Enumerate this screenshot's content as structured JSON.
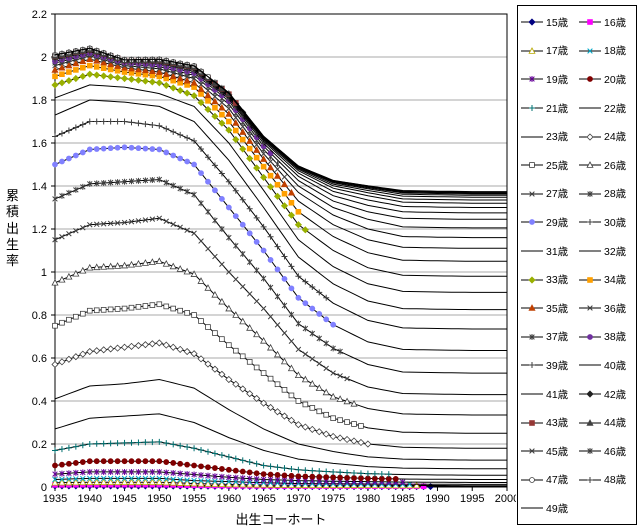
{
  "chart_data": {
    "type": "line",
    "title": "",
    "x_title": "出生コーホート",
    "y_title": "累積出生率",
    "x_range": [
      1935,
      2000
    ],
    "y_range": [
      0,
      2.2
    ],
    "x_tick_values": [
      1935,
      1940,
      1945,
      1950,
      1955,
      1960,
      1965,
      1970,
      1975,
      1980,
      1985,
      1990,
      1995,
      2000
    ],
    "x_tick_labels": [
      "1935",
      "1940",
      "1945",
      "1950",
      "1955",
      "1960",
      "1965",
      "1970",
      "1975",
      "1980",
      "1985",
      "1990",
      "1995",
      "2000"
    ],
    "y_tick_values": [
      0,
      0.2,
      0.4,
      0.6,
      0.8,
      1.0,
      1.2,
      1.4,
      1.6,
      1.8,
      2.0,
      2.2
    ],
    "y_tick_labels": [
      "0",
      "0.2",
      "0.4",
      "0.6",
      "0.8",
      "1",
      "1.2",
      "1.4",
      "1.6",
      "1.8",
      "2",
      "2.2"
    ],
    "grid": "horizontal",
    "legend_position": "right",
    "cohorts": [
      1935,
      1940,
      1945,
      1950,
      1955,
      1960,
      1965,
      1970,
      1975,
      1980,
      1985,
      1990,
      1995,
      2000
    ],
    "series": [
      {
        "label": "15歳",
        "age": 15,
        "marker": "diamond",
        "filled": true,
        "color": "#000080",
        "marker_end": 1989,
        "values": [
          0.005,
          0.005,
          0.005,
          0.005,
          0.004,
          0.003,
          0.002,
          0.002,
          0.002,
          0.002,
          0.002,
          0.002,
          0.001,
          0.001
        ]
      },
      {
        "label": "16歳",
        "age": 16,
        "marker": "square",
        "filled": true,
        "color": "#FF00FF",
        "marker_end": 1988,
        "values": [
          0.01,
          0.011,
          0.011,
          0.011,
          0.008,
          0.006,
          0.005,
          0.004,
          0.004,
          0.004,
          0.004,
          0.003,
          0.003,
          0.003
        ]
      },
      {
        "label": "17歳",
        "age": 17,
        "marker": "triangle",
        "filled": false,
        "color": "#B8A800",
        "marker_end": 1987,
        "values": [
          0.02,
          0.022,
          0.022,
          0.022,
          0.016,
          0.012,
          0.01,
          0.008,
          0.008,
          0.008,
          0.007,
          0.007,
          0.006,
          0.006
        ]
      },
      {
        "label": "18歳",
        "age": 18,
        "marker": "x",
        "filled": false,
        "color": "#00A8C8",
        "marker_end": 1986,
        "values": [
          0.035,
          0.04,
          0.04,
          0.04,
          0.03,
          0.025,
          0.02,
          0.016,
          0.015,
          0.014,
          0.013,
          0.013,
          0.012,
          0.012
        ]
      },
      {
        "label": "19歳",
        "age": 19,
        "marker": "star",
        "filled": false,
        "color": "#660099",
        "marker_end": 1985,
        "values": [
          0.06,
          0.07,
          0.07,
          0.07,
          0.058,
          0.045,
          0.035,
          0.03,
          0.027,
          0.025,
          0.023,
          0.022,
          0.021,
          0.021
        ]
      },
      {
        "label": "20歳",
        "age": 20,
        "marker": "circle",
        "filled": true,
        "color": "#800000",
        "marker_end": 1984,
        "values": [
          0.1,
          0.12,
          0.12,
          0.12,
          0.1,
          0.08,
          0.06,
          0.05,
          0.045,
          0.04,
          0.037,
          0.036,
          0.035,
          0.035
        ]
      },
      {
        "label": "21歳",
        "age": 21,
        "marker": "plus",
        "filled": false,
        "color": "#007070",
        "marker_end": 1983,
        "values": [
          0.17,
          0.2,
          0.205,
          0.21,
          0.18,
          0.14,
          0.1,
          0.08,
          0.07,
          0.062,
          0.058,
          0.056,
          0.055,
          0.055
        ]
      },
      {
        "label": "22歳",
        "age": 22,
        "marker": "none",
        "filled": false,
        "color": "#000000",
        "marker_end": null,
        "values": [
          0.27,
          0.32,
          0.33,
          0.34,
          0.3,
          0.23,
          0.17,
          0.13,
          0.11,
          0.095,
          0.088,
          0.086,
          0.085,
          0.085
        ]
      },
      {
        "label": "23歳",
        "age": 23,
        "marker": "none",
        "filled": false,
        "color": "#000000",
        "marker_end": null,
        "values": [
          0.41,
          0.47,
          0.48,
          0.5,
          0.46,
          0.36,
          0.27,
          0.2,
          0.165,
          0.14,
          0.13,
          0.127,
          0.125,
          0.125
        ]
      },
      {
        "label": "24歳",
        "age": 24,
        "marker": "diamond",
        "filled": false,
        "color": "#404040",
        "marker_end": 1980,
        "values": [
          0.57,
          0.63,
          0.65,
          0.67,
          0.62,
          0.5,
          0.39,
          0.29,
          0.235,
          0.2,
          0.185,
          0.182,
          0.18,
          0.18
        ]
      },
      {
        "label": "25歳",
        "age": 25,
        "marker": "square",
        "filled": false,
        "color": "#404040",
        "marker_end": 1979,
        "values": [
          0.75,
          0.82,
          0.83,
          0.85,
          0.8,
          0.66,
          0.53,
          0.4,
          0.32,
          0.275,
          0.255,
          0.252,
          0.25,
          0.25
        ]
      },
      {
        "label": "26歳",
        "age": 26,
        "marker": "triangle",
        "filled": false,
        "color": "#404040",
        "marker_end": 1978,
        "values": [
          0.95,
          1.02,
          1.03,
          1.05,
          0.99,
          0.83,
          0.68,
          0.52,
          0.42,
          0.365,
          0.34,
          0.337,
          0.335,
          0.335
        ]
      },
      {
        "label": "27歳",
        "age": 27,
        "marker": "x",
        "filled": false,
        "color": "#404040",
        "marker_end": 1977,
        "values": [
          1.15,
          1.22,
          1.23,
          1.25,
          1.18,
          1.0,
          0.83,
          0.64,
          0.53,
          0.465,
          0.435,
          0.432,
          0.43,
          0.43
        ]
      },
      {
        "label": "28歳",
        "age": 28,
        "marker": "star",
        "filled": false,
        "color": "#404040",
        "marker_end": 1976,
        "values": [
          1.34,
          1.41,
          1.42,
          1.43,
          1.36,
          1.16,
          0.97,
          0.76,
          0.645,
          0.57,
          0.535,
          0.532,
          0.53,
          0.53
        ]
      },
      {
        "label": "29歳",
        "age": 29,
        "marker": "circle",
        "filled": true,
        "color": "#8080FF",
        "marker_end": 1975,
        "values": [
          1.5,
          1.57,
          1.58,
          1.57,
          1.5,
          1.3,
          1.1,
          0.88,
          0.755,
          0.675,
          0.64,
          0.637,
          0.635,
          0.635
        ]
      },
      {
        "label": "30歳",
        "age": 30,
        "marker": "plus",
        "filled": false,
        "color": "#404040",
        "marker_end": 1974,
        "values": [
          1.63,
          1.7,
          1.7,
          1.68,
          1.61,
          1.42,
          1.21,
          0.98,
          0.855,
          0.775,
          0.74,
          0.737,
          0.735,
          0.735
        ]
      },
      {
        "label": "31歳",
        "age": 31,
        "marker": "none",
        "filled": false,
        "color": "#000000",
        "marker_end": null,
        "values": [
          1.73,
          1.8,
          1.79,
          1.77,
          1.7,
          1.52,
          1.3,
          1.07,
          0.945,
          0.865,
          0.83,
          0.827,
          0.825,
          0.825
        ]
      },
      {
        "label": "32歳",
        "age": 32,
        "marker": "none",
        "filled": false,
        "color": "#000000",
        "marker_end": null,
        "values": [
          1.81,
          1.87,
          1.86,
          1.83,
          1.77,
          1.6,
          1.38,
          1.15,
          1.025,
          0.945,
          0.91,
          0.907,
          0.905,
          0.905
        ]
      },
      {
        "label": "33歳",
        "age": 33,
        "marker": "diamond",
        "filled": true,
        "color": "#99B000",
        "marker_end": 1971,
        "values": [
          1.87,
          1.92,
          1.9,
          1.88,
          1.82,
          1.66,
          1.44,
          1.22,
          1.1,
          1.02,
          0.985,
          0.982,
          0.98,
          0.98
        ]
      },
      {
        "label": "34歳",
        "age": 34,
        "marker": "square",
        "filled": true,
        "color": "#FFA000",
        "marker_end": 1970,
        "values": [
          1.91,
          1.96,
          1.93,
          1.91,
          1.86,
          1.7,
          1.49,
          1.28,
          1.165,
          1.09,
          1.055,
          1.052,
          1.05,
          1.05
        ]
      },
      {
        "label": "35歳",
        "age": 35,
        "marker": "triangle",
        "filled": true,
        "color": "#C04000",
        "marker_end": 1969,
        "values": [
          1.94,
          1.99,
          1.95,
          1.93,
          1.88,
          1.735,
          1.525,
          1.33,
          1.22,
          1.15,
          1.115,
          1.112,
          1.11,
          1.11
        ]
      },
      {
        "label": "36歳",
        "age": 36,
        "marker": "x",
        "filled": false,
        "color": "#404040",
        "marker_end": 1968,
        "values": [
          1.96,
          2.005,
          1.96,
          1.945,
          1.9,
          1.76,
          1.55,
          1.37,
          1.265,
          1.2,
          1.165,
          1.162,
          1.16,
          1.16
        ]
      },
      {
        "label": "37歳",
        "age": 37,
        "marker": "star",
        "filled": false,
        "color": "#404040",
        "marker_end": 1967,
        "values": [
          1.972,
          2.012,
          1.968,
          1.955,
          1.915,
          1.78,
          1.57,
          1.4,
          1.3,
          1.245,
          1.21,
          1.207,
          1.205,
          1.205
        ]
      },
      {
        "label": "38歳",
        "age": 38,
        "marker": "circle",
        "filled": true,
        "color": "#7030A0",
        "marker_end": 1966,
        "values": [
          1.98,
          2.018,
          1.974,
          1.963,
          1.925,
          1.795,
          1.585,
          1.425,
          1.33,
          1.28,
          1.25,
          1.247,
          1.245,
          1.245
        ]
      },
      {
        "label": "39歳",
        "age": 39,
        "marker": "plus",
        "filled": false,
        "color": "#404040",
        "marker_end": 1965,
        "values": [
          1.988,
          2.024,
          1.978,
          1.97,
          1.933,
          1.805,
          1.598,
          1.445,
          1.355,
          1.31,
          1.28,
          1.277,
          1.275,
          1.275
        ]
      },
      {
        "label": "40歳",
        "age": 40,
        "marker": "none",
        "filled": false,
        "color": "#000000",
        "marker_end": null,
        "values": [
          1.993,
          2.028,
          1.98,
          1.975,
          1.94,
          1.813,
          1.608,
          1.46,
          1.375,
          1.335,
          1.305,
          1.302,
          1.3,
          1.3
        ]
      },
      {
        "label": "41歳",
        "age": 41,
        "marker": "none",
        "filled": false,
        "color": "#000000",
        "marker_end": null,
        "values": [
          1.997,
          2.031,
          1.982,
          1.979,
          1.945,
          1.819,
          1.615,
          1.471,
          1.39,
          1.355,
          1.325,
          1.322,
          1.32,
          1.32
        ]
      },
      {
        "label": "42歳",
        "age": 42,
        "marker": "diamond",
        "filled": true,
        "color": "#202020",
        "marker_end": 1962,
        "values": [
          2.0,
          2.033,
          1.983,
          1.982,
          1.949,
          1.824,
          1.62,
          1.478,
          1.401,
          1.369,
          1.34,
          1.337,
          1.335,
          1.335
        ]
      },
      {
        "label": "43歳",
        "age": 43,
        "marker": "square",
        "filled": true,
        "color": "#953735",
        "marker_end": 1961,
        "values": [
          2.003,
          2.035,
          1.984,
          1.984,
          1.952,
          1.827,
          1.623,
          1.483,
          1.409,
          1.379,
          1.353,
          1.35,
          1.348,
          1.348
        ]
      },
      {
        "label": "44歳",
        "age": 44,
        "marker": "triangle",
        "filled": true,
        "color": "#404040",
        "marker_end": 1960,
        "values": [
          2.005,
          2.037,
          1.985,
          1.986,
          1.954,
          1.829,
          1.626,
          1.487,
          1.415,
          1.387,
          1.362,
          1.359,
          1.357,
          1.357
        ]
      },
      {
        "label": "45歳",
        "age": 45,
        "marker": "x",
        "filled": false,
        "color": "#404040",
        "marker_end": 1959,
        "values": [
          2.007,
          2.038,
          1.985,
          1.987,
          1.956,
          1.831,
          1.628,
          1.489,
          1.419,
          1.392,
          1.368,
          1.365,
          1.363,
          1.363
        ]
      },
      {
        "label": "46歳",
        "age": 46,
        "marker": "star",
        "filled": false,
        "color": "#404040",
        "marker_end": 1958,
        "values": [
          2.008,
          2.039,
          1.986,
          1.988,
          1.957,
          1.832,
          1.629,
          1.491,
          1.422,
          1.396,
          1.372,
          1.369,
          1.367,
          1.367
        ]
      },
      {
        "label": "47歳",
        "age": 47,
        "marker": "circle",
        "filled": false,
        "color": "#404040",
        "marker_end": 1957,
        "values": [
          2.009,
          2.04,
          1.986,
          1.989,
          1.958,
          1.833,
          1.63,
          1.492,
          1.424,
          1.398,
          1.375,
          1.372,
          1.37,
          1.37
        ]
      },
      {
        "label": "48歳",
        "age": 48,
        "marker": "plus",
        "filled": false,
        "color": "#404040",
        "marker_end": 1956,
        "values": [
          2.01,
          2.04,
          1.986,
          1.989,
          1.958,
          1.834,
          1.631,
          1.493,
          1.425,
          1.4,
          1.377,
          1.374,
          1.372,
          1.372
        ]
      },
      {
        "label": "49歳",
        "age": 49,
        "marker": "none",
        "filled": false,
        "color": "#000000",
        "marker_end": null,
        "values": [
          2.01,
          2.041,
          1.987,
          1.99,
          1.959,
          1.834,
          1.631,
          1.493,
          1.426,
          1.401,
          1.379,
          1.376,
          1.374,
          1.374
        ]
      }
    ]
  },
  "colors": {
    "background": "#FFFFFF",
    "line": "#000000",
    "grid": "#A8A8A8",
    "axis": "#000000",
    "legend_border": "#000000"
  }
}
